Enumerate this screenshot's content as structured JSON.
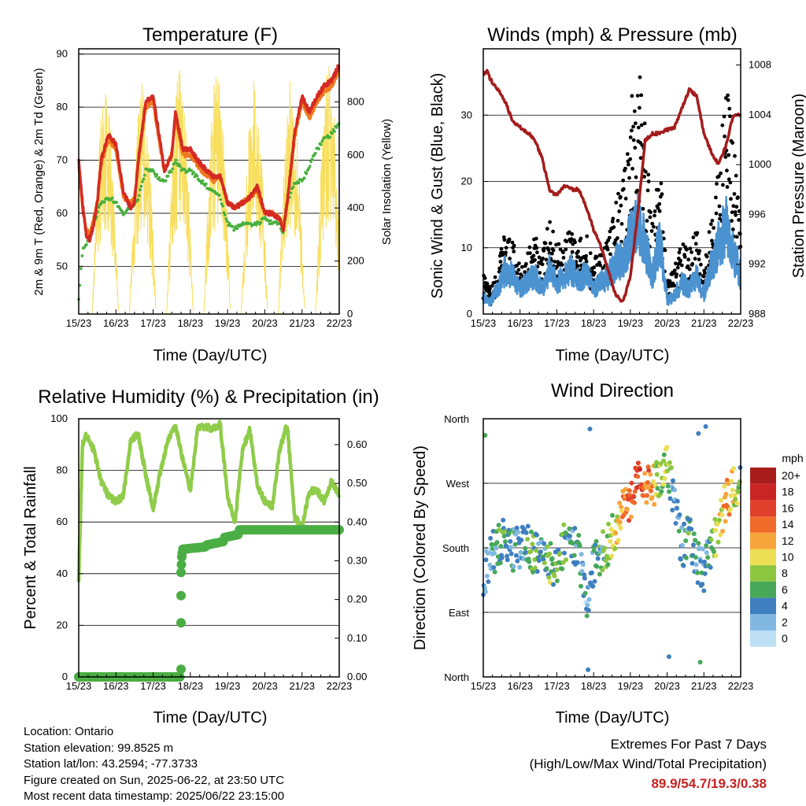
{
  "x_ticks": [
    "15/23",
    "16/23",
    "17/23",
    "18/23",
    "19/23",
    "20/23",
    "21/23",
    "22/23"
  ],
  "x_title": "Time (Day/UTC)",
  "colors": {
    "temp_red": "#d42a23",
    "temp_orange": "#ef7a1f",
    "dewpoint_green": "#47b03c",
    "insolation_yellow": "#f8de5e",
    "rh_green": "#8fcc4a",
    "precip_green": "#4aae44",
    "wind_blue": "#4b92d0",
    "gust_black": "#000000",
    "pressure_maroon": "#a41c1c"
  },
  "temperature_panel": {
    "title": "Temperature (F)",
    "y_left_label": "2m & 9m T (Red, Orange) & 2m Td (Green)",
    "y_right_label": "Solar Insolation (Yellow)",
    "y_left_ticks": [
      "50",
      "60",
      "70",
      "80",
      "90"
    ],
    "y_right_ticks": [
      "0",
      "200",
      "400",
      "600",
      "800"
    ]
  },
  "winds_panel": {
    "title": "Winds (mph) & Pressure (mb)",
    "y_left_label": "Sonic Wind & Gust (Blue, Black)",
    "y_right_label": "Station Pressure (Maroon)",
    "y_left_ticks": [
      "0",
      "10",
      "20",
      "30"
    ],
    "y_right_ticks": [
      "988",
      "992",
      "996",
      "1000",
      "1004",
      "1008"
    ]
  },
  "rh_panel": {
    "title": "Relative Humidity (%) & Precipitation (in)",
    "y_left_label": "Percent & Total Rainfall",
    "y_left_ticks": [
      "0",
      "20",
      "40",
      "60",
      "80",
      "100"
    ],
    "y_right_ticks": [
      "0.00",
      "0.10",
      "0.20",
      "0.30",
      "0.40",
      "0.50",
      "0.60"
    ]
  },
  "direction_panel": {
    "title": "Wind Direction",
    "y_left_label": "Direction (Colored By Speed)",
    "y_ticks": [
      "North",
      "East",
      "South",
      "West",
      "North"
    ],
    "legend_title": "mph",
    "legend_labels": [
      "20+",
      "18",
      "16",
      "14",
      "12",
      "10",
      "8",
      "6",
      "4",
      "2",
      "0"
    ],
    "legend_colors": [
      "#a81c1c",
      "#c82524",
      "#e0402a",
      "#f06a2a",
      "#f7a43a",
      "#ecdf55",
      "#8cc63f",
      "#47a85a",
      "#3f7fc0",
      "#80b8e2",
      "#bde0f5"
    ]
  },
  "info": {
    "location": "Location: Ontario",
    "elevation": "Station elevation: 99.8525 m",
    "latlon": "Station lat/lon: 43.2594; -77.3733",
    "created": "Figure created on Sun, 2025-06-22, at 23:50 UTC",
    "recent": "Most recent data timestamp: 2025/06/22 23:15:00"
  },
  "extremes": {
    "line1": "Extremes For Past 7 Days",
    "line2": "(High/Low/Max Wind/Total Precipitation)",
    "values": "89.9/54.7/19.3/0.38"
  },
  "chart_data": [
    {
      "type": "line",
      "title": "Temperature (F)",
      "xlabel": "Time (Day/UTC)",
      "ylabel": "2m & 9m T (Red, Orange) & 2m Td (Green)",
      "y2label": "Solar Insolation (Yellow)",
      "x": [
        15.0,
        15.1,
        15.2,
        15.3,
        15.4,
        15.5,
        15.6,
        15.8,
        16.0,
        16.2,
        16.4,
        16.5,
        16.6,
        16.8,
        17.0,
        17.2,
        17.3,
        17.5,
        17.6,
        17.8,
        18.0,
        18.3,
        18.6,
        18.8,
        19.0,
        19.2,
        19.4,
        19.6,
        19.8,
        20.0,
        20.2,
        20.4,
        20.5,
        20.6,
        20.8,
        21.0,
        21.2,
        21.4,
        21.6,
        21.8,
        22.0
      ],
      "ylim": [
        41,
        91
      ],
      "y2lim": [
        0,
        1000
      ],
      "series": [
        {
          "name": "2m T",
          "axis": "left",
          "values": [
            70,
            62,
            56,
            55,
            58,
            62,
            70,
            75,
            73,
            64,
            61,
            62,
            70,
            81,
            82,
            73,
            68,
            71,
            79,
            72,
            72,
            69,
            67,
            67,
            62,
            61,
            62,
            63,
            65,
            60,
            60,
            59,
            57,
            62,
            75,
            82,
            79,
            82,
            84,
            85,
            88
          ]
        },
        {
          "name": "9m T",
          "axis": "left",
          "values": [
            69,
            61,
            57,
            56,
            59,
            62,
            69,
            74,
            72,
            63,
            62,
            63,
            69,
            80,
            81,
            72,
            68,
            71,
            78,
            71,
            71,
            68,
            66,
            67,
            62,
            61,
            62,
            63,
            64,
            60,
            60,
            59,
            57,
            62,
            74,
            81,
            78,
            81,
            83,
            84,
            87
          ]
        },
        {
          "name": "2m Td",
          "axis": "left",
          "values": [
            44,
            53,
            54,
            55,
            58,
            60,
            62,
            63,
            62,
            60,
            61,
            62,
            63,
            68,
            68,
            66,
            66,
            68,
            70,
            68,
            68,
            66,
            64,
            63,
            58,
            57,
            58,
            58,
            58,
            59,
            58,
            58,
            56,
            62,
            66,
            66,
            69,
            72,
            74,
            75,
            77
          ]
        }
      ],
      "insolation_peaks": [
        {
          "day": 15.72,
          "peak": 880
        },
        {
          "day": 16.72,
          "peak": 880
        },
        {
          "day": 17.72,
          "peak": 930
        },
        {
          "day": 18.72,
          "peak": 930
        },
        {
          "day": 19.72,
          "peak": 900
        },
        {
          "day": 20.72,
          "peak": 900
        },
        {
          "day": 21.72,
          "peak": 940
        }
      ]
    },
    {
      "type": "line",
      "title": "Winds (mph) & Pressure (mb)",
      "xlabel": "Time (Day/UTC)",
      "ylabel": "Sonic Wind & Gust (Blue, Black)",
      "y2label": "Station Pressure (Maroon)",
      "x": [
        15.0,
        15.1,
        15.2,
        15.4,
        15.6,
        15.8,
        16.0,
        16.2,
        16.4,
        16.6,
        16.8,
        17.0,
        17.2,
        17.4,
        17.6,
        17.8,
        18.0,
        18.2,
        18.4,
        18.6,
        18.8,
        19.0,
        19.2,
        19.4,
        19.6,
        19.8,
        20.0,
        20.2,
        20.4,
        20.6,
        20.8,
        21.0,
        21.2,
        21.4,
        21.6,
        21.8,
        22.0
      ],
      "ylim": [
        0,
        40
      ],
      "y2lim": [
        988,
        1009.3
      ],
      "series": [
        {
          "name": "Sonic Wind",
          "axis": "left",
          "values": [
            3,
            2,
            2,
            4,
            7,
            6,
            4,
            5,
            6,
            4,
            7,
            5,
            6,
            7,
            5,
            7,
            4,
            5,
            6,
            8,
            9,
            12,
            14,
            11,
            6,
            12,
            2,
            3,
            5,
            4,
            6,
            3,
            8,
            11,
            14,
            10,
            6
          ]
        },
        {
          "name": "Gust",
          "axis": "left",
          "values": [
            5,
            4,
            3,
            6,
            11,
            9,
            7,
            8,
            10,
            8,
            12,
            9,
            10,
            12,
            9,
            11,
            7,
            8,
            10,
            14,
            18,
            26,
            33,
            24,
            12,
            20,
            4,
            6,
            9,
            8,
            11,
            6,
            13,
            18,
            30,
            22,
            12
          ]
        },
        {
          "name": "Station Pressure",
          "axis": "right",
          "values": [
            1007.3,
            1007.5,
            1006.8,
            1006,
            1005,
            1003.5,
            1003,
            1002.6,
            1002,
            1000.5,
            998,
            997.5,
            998.3,
            998,
            998,
            996.6,
            994.8,
            993.4,
            991.5,
            989.5,
            989,
            991,
            996,
            1001.9,
            1002.5,
            1002.5,
            1002.8,
            1003,
            1004.5,
            1006,
            1005.5,
            1002.5,
            1001,
            1000,
            1001.5,
            1004,
            1004
          ]
        }
      ]
    },
    {
      "type": "line",
      "title": "Relative Humidity (%) & Precipitation (in)",
      "xlabel": "Time (Day/UTC)",
      "ylabel": "Percent & Total Rainfall",
      "x": [
        15.0,
        15.1,
        15.2,
        15.4,
        15.6,
        15.8,
        16.0,
        16.2,
        16.4,
        16.6,
        16.8,
        17.0,
        17.2,
        17.4,
        17.6,
        17.8,
        18.0,
        18.2,
        18.4,
        18.6,
        18.8,
        19.0,
        19.2,
        19.4,
        19.6,
        19.8,
        20.0,
        20.2,
        20.4,
        20.6,
        20.8,
        21.0,
        21.2,
        21.4,
        21.6,
        21.8,
        22.0
      ],
      "ylim": [
        0,
        100
      ],
      "y2lim": [
        0,
        0.667
      ],
      "series": [
        {
          "name": "Relative Humidity",
          "axis": "left",
          "values": [
            38,
            90,
            94,
            88,
            76,
            70,
            68,
            70,
            92,
            94,
            78,
            65,
            80,
            92,
            97,
            84,
            72,
            97,
            97,
            96,
            98,
            70,
            60,
            88,
            96,
            74,
            68,
            66,
            88,
            98,
            62,
            58,
            72,
            72,
            68,
            76,
            70
          ]
        },
        {
          "name": "Total Precipitation",
          "axis": "right",
          "values": [
            0,
            0,
            0,
            0,
            0,
            0,
            0,
            0,
            0,
            0,
            0,
            0,
            0,
            0,
            0,
            0,
            0,
            0,
            0,
            0,
            0.33,
            0.34,
            0.35,
            0.36,
            0.37,
            0.38,
            0.38,
            0.38,
            0.38,
            0.38,
            0.38,
            0.38,
            0.38,
            0.38,
            0.38,
            0.38,
            0.38
          ]
        }
      ]
    },
    {
      "type": "scatter",
      "title": "Wind Direction",
      "xlabel": "Time (Day/UTC)",
      "ylabel": "Direction (Colored By Speed)",
      "y_ticks": [
        "North",
        "East",
        "South",
        "West",
        "North"
      ],
      "ylim": [
        0,
        360
      ],
      "x": [
        15.0,
        15.2,
        15.4,
        15.6,
        15.8,
        16.0,
        16.2,
        16.4,
        16.6,
        16.8,
        17.0,
        17.2,
        17.4,
        17.6,
        17.8,
        18.0,
        18.2,
        18.4,
        18.6,
        18.8,
        19.0,
        19.2,
        19.4,
        19.6,
        19.8,
        20.0,
        20.2,
        20.4,
        20.6,
        20.8,
        21.0,
        21.2,
        21.4,
        21.6,
        21.8,
        22.0
      ],
      "direction": [
        130,
        170,
        180,
        200,
        175,
        180,
        185,
        170,
        190,
        160,
        150,
        185,
        180,
        175,
        100,
        160,
        170,
        185,
        205,
        230,
        245,
        270,
        270,
        265,
        280,
        300,
        240,
        180,
        200,
        160,
        150,
        175,
        210,
        245,
        260,
        280
      ],
      "speed": [
        2,
        3,
        5,
        6,
        4,
        3,
        5,
        6,
        4,
        7,
        5,
        6,
        4,
        5,
        3,
        4,
        5,
        7,
        10,
        13,
        15,
        16,
        14,
        12,
        8,
        9,
        3,
        4,
        5,
        4,
        3,
        6,
        10,
        13,
        10,
        6
      ]
    }
  ]
}
